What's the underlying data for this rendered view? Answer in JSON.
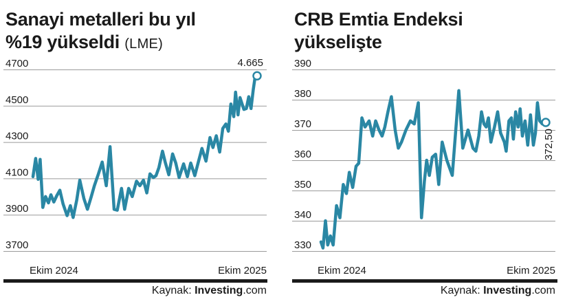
{
  "colors": {
    "line": "#2a87a4",
    "text": "#1a1a1a",
    "grid": "#9a9a9a"
  },
  "panels": [
    {
      "title": "Sanayi metalleri bu yıl",
      "title_line2": "%19 yükseldi",
      "subtitle": "(LME)",
      "source": {
        "prefix": "Kaynak: ",
        "brand": "Investing",
        "suffix": ".com"
      }
    },
    {
      "title": "CRB Emtia Endeksi",
      "title_line2": "yükselişte",
      "subtitle": "",
      "source": {
        "prefix": "Kaynak: ",
        "brand": "Investing",
        "suffix": ".com"
      }
    }
  ],
  "chart_data": [
    {
      "type": "line",
      "title": "Sanayi metalleri bu yıl %19 yükseldi (LME)",
      "xlabel": "",
      "ylabel": "",
      "ylim": [
        3700,
        4700
      ],
      "yticks": [
        3700,
        3900,
        4100,
        4300,
        4500,
        4700
      ],
      "xlim": [
        0,
        100
      ],
      "xtick_labels": [
        {
          "label": "Ekim 2024",
          "x": 0
        },
        {
          "label": "Ekim 2025",
          "x": 100
        }
      ],
      "grid": true,
      "end_label": "4.665",
      "x": [
        0,
        1.2,
        2.3,
        3.2,
        4.4,
        5.6,
        6.9,
        8.0,
        9.3,
        10.6,
        12.0,
        13.4,
        15.2,
        16.7,
        17.9,
        19.5,
        20.9,
        22.7,
        24.3,
        26.0,
        27.4,
        29.2,
        30.9,
        32.7,
        34.4,
        36.2,
        37.6,
        39.5,
        40.9,
        42.7,
        44.3,
        46.2,
        47.7,
        49.3,
        50.8,
        52.2,
        53.7,
        54.9,
        56.2,
        57.8,
        59.0,
        60.6,
        62.3,
        63.7,
        65.2,
        67.2,
        68.9,
        70.4,
        72.2,
        73.9,
        75.4,
        77.2,
        79.0,
        80.3,
        81.8,
        83.3,
        84.7,
        86.1,
        87.2,
        88.3,
        89.6,
        90.4,
        91.5,
        92.4,
        93.3,
        94.1,
        95.2,
        96.3,
        97.3,
        98.3,
        99.2,
        100
      ],
      "y": [
        4110,
        4210,
        4095,
        4205,
        3940,
        4000,
        3965,
        4010,
        3970,
        4005,
        4035,
        3960,
        3895,
        3950,
        3885,
        3980,
        4090,
        3990,
        3930,
        4000,
        4060,
        4125,
        4190,
        4060,
        4275,
        3930,
        3925,
        4045,
        3930,
        4045,
        4000,
        4085,
        4060,
        4090,
        4020,
        4125,
        4105,
        4115,
        4160,
        4250,
        4190,
        4120,
        4235,
        4185,
        4105,
        4180,
        4110,
        4185,
        4115,
        4195,
        4265,
        4195,
        4325,
        4270,
        4335,
        4245,
        4375,
        4400,
        4360,
        4510,
        4440,
        4575,
        4450,
        4545,
        4510,
        4480,
        4485,
        4550,
        4485,
        4590,
        4665,
        4665
      ]
    },
    {
      "type": "line",
      "title": "CRB Emtia Endeksi yükselişte",
      "xlabel": "",
      "ylabel": "",
      "ylim": [
        330,
        390
      ],
      "yticks": [
        330,
        340,
        350,
        360,
        370,
        380,
        390
      ],
      "xlim": [
        0,
        100
      ],
      "xtick_labels": [
        {
          "label": "Ekim 2024",
          "x": 0
        },
        {
          "label": "Ekim 2025",
          "x": 100
        }
      ],
      "grid": true,
      "end_label": "372,50",
      "x": [
        0,
        0.9,
        2.0,
        3.0,
        4.2,
        5.4,
        6.9,
        8.4,
        9.9,
        11.3,
        12.6,
        14.1,
        15.6,
        16.8,
        18.2,
        19.6,
        21.4,
        23.0,
        24.3,
        25.8,
        27.2,
        28.4,
        29.8,
        31.3,
        33.0,
        34.4,
        35.8,
        37.8,
        39.8,
        41.5,
        43.3,
        44.7,
        46.0,
        47.0,
        48.2,
        49.5,
        51.0,
        52.4,
        53.9,
        56.0,
        58.4,
        61.3,
        63.1,
        65.4,
        67.6,
        68.9,
        70.2,
        71.4,
        72.5,
        73.5,
        74.5,
        75.6,
        77.2,
        78.6,
        79.9,
        81.6,
        82.4,
        83.6,
        84.7,
        85.6,
        86.6,
        87.7,
        88.6,
        89.6,
        90.8,
        92.0,
        93.2,
        94.5,
        95.4,
        96.3,
        97.3,
        98.5,
        99.3,
        100
      ],
      "y": [
        333,
        331,
        340,
        332,
        335,
        332,
        345,
        341,
        352,
        349,
        356,
        351,
        358,
        359,
        374,
        371,
        373,
        368,
        373,
        370,
        368,
        371,
        376,
        381,
        370,
        364,
        366,
        370,
        373,
        372,
        379,
        341,
        353,
        360,
        355,
        361,
        362,
        352,
        366,
        360,
        355,
        383,
        364,
        370,
        364,
        363,
        368,
        376,
        372,
        371,
        374,
        366,
        371,
        376,
        369,
        366,
        363,
        373,
        374,
        367,
        376,
        371,
        377,
        368,
        373,
        365,
        375,
        365,
        369,
        379,
        373,
        372,
        372.5,
        372.5
      ]
    }
  ]
}
